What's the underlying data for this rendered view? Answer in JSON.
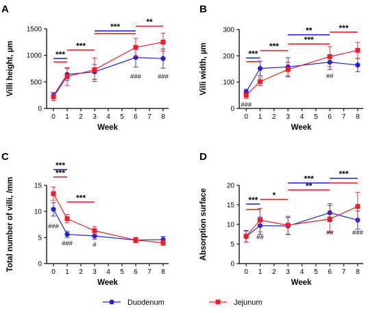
{
  "colors": {
    "duodenum": "#1f1fe0",
    "jejunum": "#ee1c25",
    "axis": "#000000"
  },
  "legend": [
    {
      "name": "Duodenum",
      "color": "#1f1fe0",
      "marker": "circle"
    },
    {
      "name": "Jejunum",
      "color": "#ee1c25",
      "marker": "square"
    }
  ],
  "chart_data": [
    {
      "id": "A",
      "type": "line",
      "panel_label": "A",
      "xlabel": "Week",
      "ylabel": "Villi height, µm",
      "x_ticks": [
        0,
        1,
        2,
        3,
        4,
        5,
        6,
        7,
        8
      ],
      "y_ticks": [
        0,
        500,
        1000,
        1500
      ],
      "ylim": [
        0,
        1500
      ],
      "xlim": [
        -0.5,
        8.4
      ],
      "x": [
        0,
        1,
        3,
        6,
        8
      ],
      "series": [
        {
          "name": "Duodenum",
          "color": "#1f1fe0",
          "marker": "circle",
          "values": [
            240,
            640,
            690,
            960,
            940
          ],
          "errors": [
            60,
            110,
            140,
            180,
            180
          ]
        },
        {
          "name": "Jejunum",
          "color": "#ee1c25",
          "marker": "square",
          "values": [
            220,
            600,
            730,
            1150,
            1250
          ],
          "errors": [
            70,
            170,
            220,
            170,
            170
          ]
        }
      ],
      "significance": [
        {
          "label": "***",
          "color": "black",
          "bars": [
            {
              "x1": 0,
              "x2": 1,
              "y": 940,
              "color": "#1f1fe0"
            },
            {
              "x1": 0,
              "x2": 1,
              "y": 875,
              "color": "#ee1c25"
            }
          ]
        },
        {
          "label": "***",
          "color": "black",
          "bars": [
            {
              "x1": 1,
              "x2": 3,
              "y": 1100,
              "color": "#ee1c25"
            }
          ]
        },
        {
          "label": "***",
          "color": "black",
          "bars": [
            {
              "x1": 3,
              "x2": 6,
              "y": 1460,
              "color": "#1f1fe0"
            },
            {
              "x1": 3,
              "x2": 6,
              "y": 1410,
              "color": "#ee1c25"
            }
          ]
        },
        {
          "label": "**",
          "color": "black",
          "bars": [
            {
              "x1": 6,
              "x2": 8,
              "y": 1550,
              "color": "#ee1c25"
            }
          ]
        }
      ],
      "hash_marks": [
        {
          "x": 6,
          "y": 560,
          "label": "###"
        },
        {
          "x": 8,
          "y": 560,
          "label": "###"
        }
      ]
    },
    {
      "id": "B",
      "type": "line",
      "panel_label": "B",
      "xlabel": "Week",
      "ylabel": "Villi width, µm",
      "x_ticks": [
        0,
        1,
        2,
        3,
        4,
        5,
        6,
        7,
        8
      ],
      "y_ticks": [
        0,
        100,
        200,
        300
      ],
      "ylim": [
        0,
        300
      ],
      "xlim": [
        -0.5,
        8.4
      ],
      "x": [
        0,
        1,
        3,
        6,
        8
      ],
      "series": [
        {
          "name": "Duodenum",
          "color": "#1f1fe0",
          "marker": "circle",
          "values": [
            63,
            152,
            158,
            176,
            165
          ],
          "errors": [
            10,
            28,
            35,
            28,
            25
          ]
        },
        {
          "name": "Jejunum",
          "color": "#ee1c25",
          "marker": "square",
          "values": [
            50,
            102,
            148,
            197,
            221
          ],
          "errors": [
            12,
            15,
            28,
            38,
            30
          ]
        }
      ],
      "significance": [
        {
          "label": "***",
          "color": "black",
          "bars": [
            {
              "x1": 0,
              "x2": 1,
              "y": 192,
              "color": "#1f1fe0"
            },
            {
              "x1": 0,
              "x2": 1,
              "y": 178,
              "color": "#ee1c25"
            }
          ]
        },
        {
          "label": "***",
          "color": "black",
          "bars": [
            {
              "x1": 1,
              "x2": 3,
              "y": 220,
              "color": "#ee1c25"
            }
          ]
        },
        {
          "label": "**",
          "color": "black",
          "bars": [
            {
              "x1": 3,
              "x2": 6,
              "y": 280,
              "color": "#1f1fe0"
            }
          ]
        },
        {
          "label": "***",
          "color": "black",
          "bars": [
            {
              "x1": 3,
              "x2": 6,
              "y": 245,
              "color": "#ee1c25"
            }
          ]
        },
        {
          "label": "***",
          "color": "black",
          "bars": [
            {
              "x1": 6,
              "x2": 8,
              "y": 290,
              "color": "#ee1c25"
            }
          ]
        }
      ],
      "hash_marks": [
        {
          "x": 0,
          "y": 7,
          "label": "###"
        },
        {
          "x": 6,
          "y": 115,
          "label": "##"
        }
      ]
    },
    {
      "id": "C",
      "type": "line",
      "panel_label": "C",
      "xlabel": "Week",
      "ylabel": "Total number of villi, /mm",
      "x_ticks": [
        0,
        1,
        2,
        3,
        4,
        5,
        6,
        7,
        8
      ],
      "y_ticks": [
        0,
        5,
        10,
        15
      ],
      "ylim": [
        0,
        15
      ],
      "xlim": [
        -0.5,
        8.4
      ],
      "x": [
        0,
        1,
        3,
        6,
        8
      ],
      "series": [
        {
          "name": "Duodenum",
          "color": "#1f1fe0",
          "marker": "circle",
          "values": [
            10.4,
            5.6,
            5.3,
            4.5,
            4.6
          ],
          "errors": [
            1.3,
            0.6,
            0.6,
            0.5,
            0.6
          ]
        },
        {
          "name": "Jejunum",
          "color": "#ee1c25",
          "marker": "square",
          "values": [
            13.4,
            8.6,
            6.3,
            4.5,
            4.0
          ],
          "errors": [
            1.3,
            0.8,
            0.8,
            0.5,
            0.5
          ]
        }
      ],
      "significance": [
        {
          "label": "***",
          "color": "black",
          "bars": [
            {
              "x1": 0,
              "x2": 1,
              "y": 18.0,
              "color": "#1f1fe0"
            }
          ]
        },
        {
          "label": "***",
          "color": "black",
          "bars": [
            {
              "x1": 0,
              "x2": 1,
              "y": 16.6,
              "color": "#ee1c25"
            }
          ]
        },
        {
          "label": "***",
          "color": "black",
          "bars": [
            {
              "x1": 1,
              "x2": 3,
              "y": 11.8,
              "color": "#ee1c25"
            }
          ]
        }
      ],
      "hash_marks": [
        {
          "x": 0,
          "y": 6.8,
          "label": "###"
        },
        {
          "x": 1,
          "y": 3.5,
          "label": "###"
        },
        {
          "x": 3,
          "y": 3.2,
          "label": "#"
        }
      ]
    },
    {
      "id": "D",
      "type": "line",
      "panel_label": "D",
      "xlabel": "Week",
      "ylabel": "Absorption surface",
      "x_ticks": [
        0,
        1,
        2,
        3,
        4,
        5,
        6,
        7,
        8
      ],
      "y_ticks": [
        0,
        5,
        10,
        15,
        20
      ],
      "ylim": [
        0,
        20
      ],
      "xlim": [
        -0.5,
        8.4
      ],
      "x": [
        0,
        1,
        3,
        6,
        8
      ],
      "series": [
        {
          "name": "Duodenum",
          "color": "#1f1fe0",
          "marker": "circle",
          "values": [
            6.9,
            9.7,
            9.6,
            13.0,
            11.1
          ],
          "errors": [
            1.4,
            2.2,
            2.2,
            2.3,
            2.3
          ]
        },
        {
          "name": "Jejunum",
          "color": "#ee1c25",
          "marker": "square",
          "values": [
            7.0,
            11.1,
            9.8,
            11.4,
            14.6
          ],
          "errors": [
            1.5,
            3.0,
            2.3,
            3.4,
            3.6
          ]
        }
      ],
      "significance": [
        {
          "label": "***",
          "color": "black",
          "bars": [
            {
              "x1": 0,
              "x2": 1,
              "y": 15.2,
              "color": "#1f1fe0"
            },
            {
              "x1": 0,
              "x2": 1,
              "y": 13.8,
              "color": "#ee1c25"
            }
          ]
        },
        {
          "label": "*",
          "color": "black",
          "bars": [
            {
              "x1": 1,
              "x2": 3,
              "y": 16.4,
              "color": "#ee1c25"
            }
          ]
        },
        {
          "label": "***",
          "color": "black",
          "bars": [
            {
              "x1": 3,
              "x2": 6,
              "y": 20.6,
              "color": "#1f1fe0"
            }
          ]
        },
        {
          "label": "**",
          "color": "black",
          "bars": [
            {
              "x1": 3,
              "x2": 6,
              "y": 18.8,
              "color": "#ee1c25"
            }
          ]
        },
        {
          "label": "***",
          "color": "black",
          "bars": [
            {
              "x1": 6,
              "x2": 8,
              "y": 21.8,
              "color": "#1f1fe0"
            },
            {
              "x1": 6,
              "x2": 8,
              "y": 20.6,
              "color": "#ee1c25"
            }
          ]
        }
      ],
      "hash_marks": [
        {
          "x": 1,
          "y": 6.2,
          "label": "##"
        },
        {
          "x": 6,
          "y": 7.4,
          "label": "##"
        },
        {
          "x": 8,
          "y": 7.4,
          "label": "###"
        }
      ]
    }
  ]
}
